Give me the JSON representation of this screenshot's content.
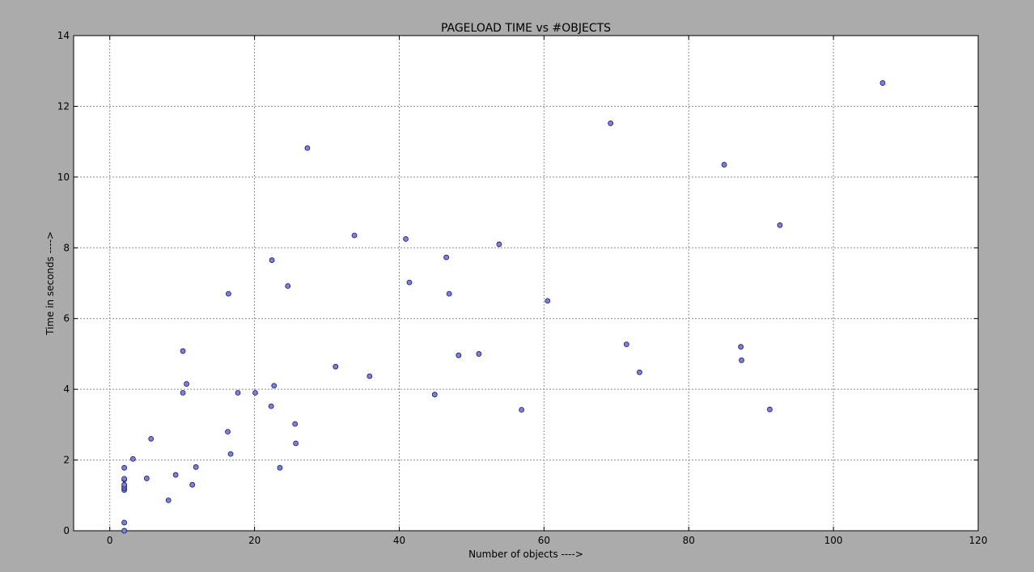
{
  "chart_data": {
    "type": "scatter",
    "title": "PAGELOAD TIME  vs  #OBJECTS",
    "xlabel": "Number of objects ---->",
    "ylabel": "Time in seconds ---->",
    "xlim": [
      -5,
      120
    ],
    "ylim": [
      0,
      14
    ],
    "xticks": [
      0,
      20,
      40,
      60,
      80,
      100,
      120
    ],
    "yticks": [
      0,
      2,
      4,
      6,
      8,
      10,
      12,
      14
    ],
    "grid": true,
    "colors": {
      "figure_bg": "#ababab",
      "plot_bg": "#ffffff",
      "marker_fill": "#7b7fe0",
      "marker_edge": "#1c1c5a",
      "grid": "#8c8c8c"
    },
    "series": [
      {
        "points": [
          [
            2,
            0.0
          ],
          [
            2,
            0.0
          ],
          [
            2,
            0.23
          ],
          [
            2,
            1.15
          ],
          [
            2,
            1.2
          ],
          [
            2,
            1.25
          ],
          [
            2,
            1.3
          ],
          [
            2,
            1.45
          ],
          [
            2,
            1.47
          ],
          [
            2,
            1.78
          ],
          [
            3.2,
            2.03
          ],
          [
            5.1,
            1.48
          ],
          [
            5.7,
            2.6
          ],
          [
            8.1,
            0.86
          ],
          [
            9.1,
            1.58
          ],
          [
            10.1,
            3.9
          ],
          [
            10.1,
            5.08
          ],
          [
            10.6,
            4.15
          ],
          [
            11.4,
            1.3
          ],
          [
            11.9,
            1.8
          ],
          [
            16.3,
            2.8
          ],
          [
            16.4,
            6.7
          ],
          [
            16.7,
            2.17
          ],
          [
            17.7,
            3.9
          ],
          [
            20.1,
            3.9
          ],
          [
            22.3,
            3.52
          ],
          [
            22.4,
            7.65
          ],
          [
            22.7,
            4.1
          ],
          [
            23.5,
            1.78
          ],
          [
            24.6,
            6.92
          ],
          [
            25.6,
            3.02
          ],
          [
            25.7,
            2.47
          ],
          [
            27.3,
            10.82
          ],
          [
            31.2,
            4.64
          ],
          [
            33.8,
            8.35
          ],
          [
            35.9,
            4.37
          ],
          [
            40.9,
            8.25
          ],
          [
            41.4,
            7.02
          ],
          [
            44.9,
            3.85
          ],
          [
            46.5,
            7.73
          ],
          [
            46.9,
            6.7
          ],
          [
            48.2,
            4.96
          ],
          [
            51.0,
            5.0
          ],
          [
            53.8,
            8.1
          ],
          [
            56.9,
            3.42
          ],
          [
            60.5,
            6.5
          ],
          [
            69.2,
            11.52
          ],
          [
            71.4,
            5.27
          ],
          [
            73.2,
            4.48
          ],
          [
            84.9,
            10.35
          ],
          [
            87.2,
            5.2
          ],
          [
            87.3,
            4.82
          ],
          [
            91.2,
            3.43
          ],
          [
            92.6,
            8.64
          ],
          [
            106.8,
            12.66
          ]
        ]
      }
    ]
  }
}
